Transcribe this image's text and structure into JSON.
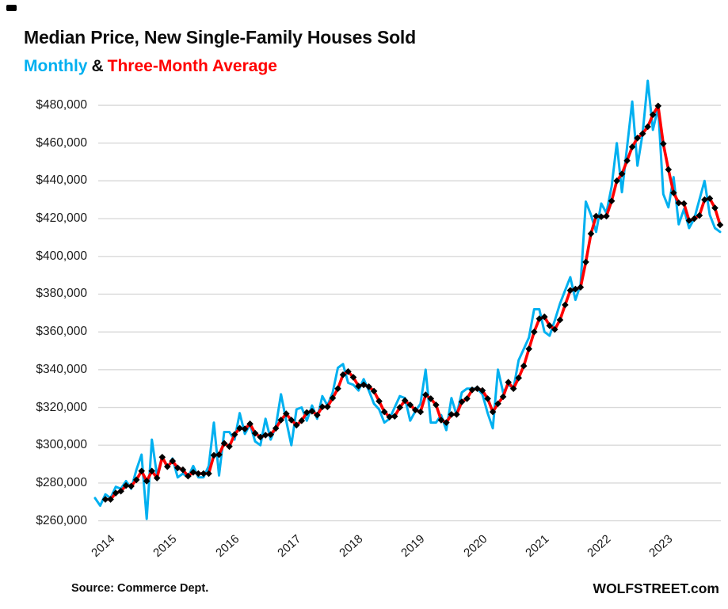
{
  "header": {
    "title": "Median Price, New Single-Family Houses Sold",
    "legend_monthly": "Monthly",
    "legend_amp": "&",
    "legend_avg": "Three-Month Average"
  },
  "footer": {
    "source": "Source: Commerce Dept.",
    "brand": "WOLFSTREET.com"
  },
  "colors": {
    "monthly_line": "#00b0f0",
    "average_line": "#ff0000",
    "marker": "#000000",
    "gridline": "#d9d9d9",
    "text": "#1a1a1a"
  },
  "chart_data": {
    "type": "line",
    "title": "Median Price, New Single-Family Houses Sold",
    "xlabel": "",
    "ylabel": "",
    "grid": "horizontal",
    "legend_position": "top-left subtitle",
    "start_month": "2013-11",
    "frequency": "monthly",
    "ylim": [
      260000,
      497000
    ],
    "y_ticks": [
      {
        "value": 260000,
        "label": "$260,000"
      },
      {
        "value": 280000,
        "label": "$280,000"
      },
      {
        "value": 300000,
        "label": "$300,000"
      },
      {
        "value": 320000,
        "label": "$320,000"
      },
      {
        "value": 340000,
        "label": "$340,000"
      },
      {
        "value": 360000,
        "label": "$360,000"
      },
      {
        "value": 380000,
        "label": "$380,000"
      },
      {
        "value": 400000,
        "label": "$400,000"
      },
      {
        "value": 420000,
        "label": "$420,000"
      },
      {
        "value": 440000,
        "label": "$440,000"
      },
      {
        "value": 460000,
        "label": "$460,000"
      },
      {
        "value": 480000,
        "label": "$480,000"
      }
    ],
    "x_tick_labels": [
      "2014",
      "2015",
      "2016",
      "2017",
      "2018",
      "2019",
      "2020",
      "2021",
      "2022",
      "2023"
    ],
    "x_tick_month_index": [
      2,
      14,
      26,
      38,
      50,
      62,
      74,
      86,
      98,
      110
    ],
    "series": [
      {
        "name": "Monthly",
        "color": "#00b0f0",
        "values": [
          272000,
          268000,
          274000,
          272000,
          278000,
          277000,
          281000,
          277000,
          287000,
          295000,
          261000,
          303000,
          284000,
          294000,
          288000,
          293000,
          283000,
          285000,
          283000,
          289000,
          283000,
          283000,
          289000,
          312000,
          284000,
          307000,
          307000,
          303000,
          317000,
          306000,
          311000,
          302000,
          300000,
          314000,
          303000,
          310000,
          327000,
          313000,
          300000,
          319000,
          320000,
          313000,
          321000,
          314000,
          326000,
          321000,
          328000,
          341000,
          343000,
          333000,
          332000,
          329000,
          335000,
          329000,
          322000,
          319000,
          312000,
          314000,
          320000,
          326000,
          325000,
          313000,
          318000,
          322000,
          340000,
          312000,
          312000,
          316000,
          308000,
          325000,
          316000,
          328000,
          330000,
          330000,
          330000,
          327000,
          317000,
          309000,
          340000,
          328000,
          332000,
          330000,
          345000,
          351000,
          357000,
          372000,
          372000,
          360000,
          358000,
          366000,
          375000,
          382000,
          389000,
          377000,
          385000,
          429000,
          422000,
          413000,
          428000,
          423000,
          437000,
          460000,
          434000,
          458000,
          482000,
          448000,
          465000,
          493000,
          467000,
          479000,
          433000,
          426000,
          442000,
          417000,
          425000,
          415000,
          420000,
          430000,
          440000,
          422000,
          415000,
          413000
        ]
      },
      {
        "name": "Three-Month Average",
        "color": "#ff0000",
        "marker": "black-diamond",
        "derived": "trailing 3-month average of Monthly series",
        "average_window": 3
      }
    ]
  }
}
